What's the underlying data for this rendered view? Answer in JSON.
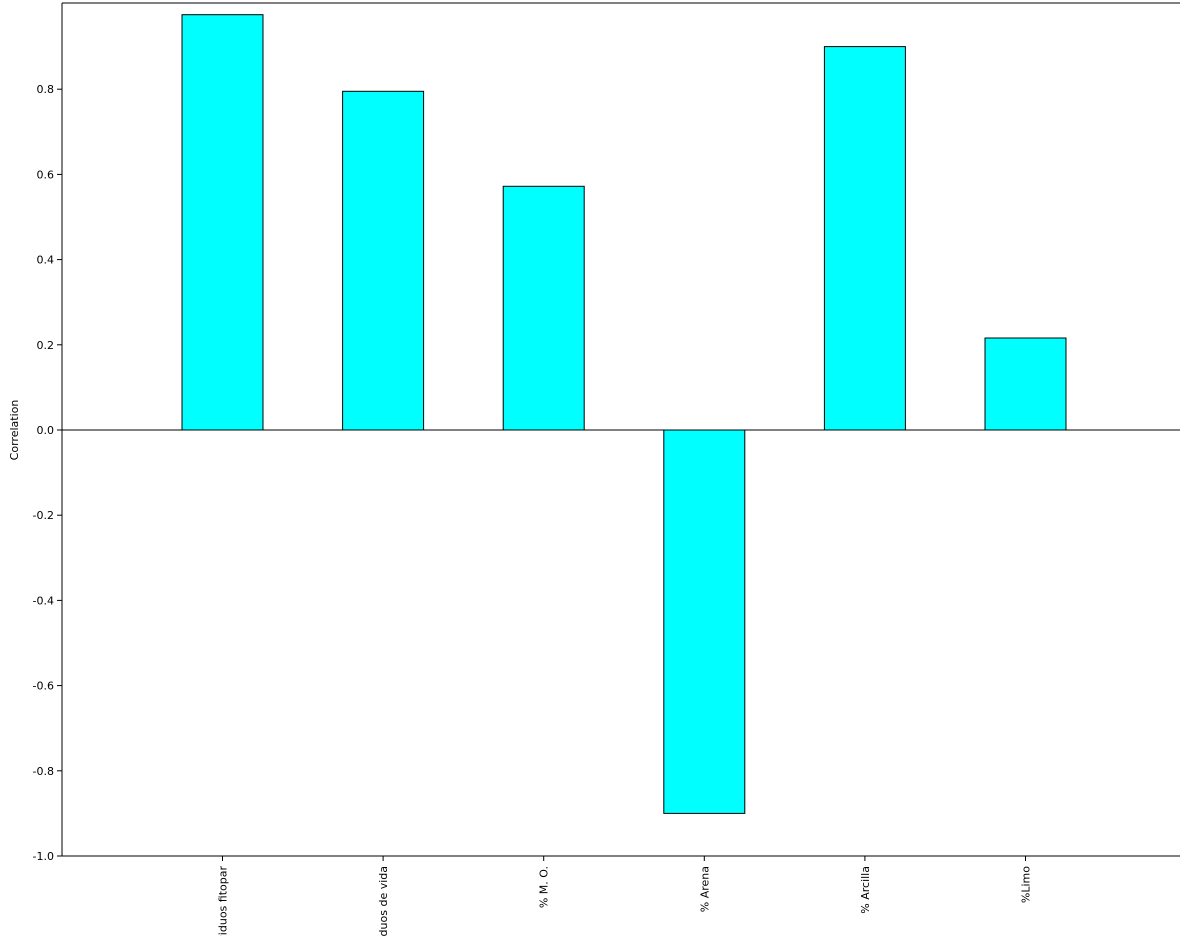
{
  "chart_data": {
    "type": "bar",
    "categories": [
      "viduos fitopar",
      "viduos de vida",
      "% M. O.",
      "% Arena",
      "% Arcilla",
      "%Limo"
    ],
    "values": [
      0.975,
      0.795,
      0.572,
      -0.9,
      0.9,
      0.216
    ],
    "xlabel": "",
    "ylabel": "Correlation",
    "ylim": [
      -1.0,
      1.0
    ],
    "yticks": [
      "-1.0",
      "-0.8",
      "-0.6",
      "-0.4",
      "-0.2",
      "0.0",
      "0.2",
      "0.4",
      "0.6",
      "0.8"
    ],
    "ytick_values": [
      -1.0,
      -0.8,
      -0.6,
      -0.4,
      -0.2,
      0.0,
      0.2,
      0.4,
      0.6,
      0.8
    ],
    "grid": false,
    "bar_color": "#00FFFF",
    "bar_edge_color": "#000000"
  }
}
